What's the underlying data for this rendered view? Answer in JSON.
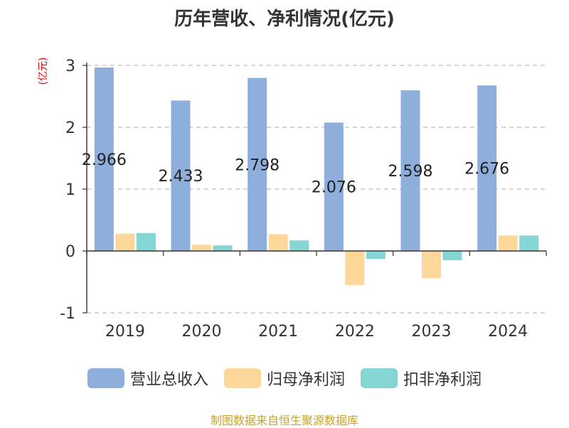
{
  "title": "历年营收、净利情况(亿元)",
  "unit_label": "(亿元)",
  "source": "制图数据来自恒生聚源数据库",
  "chart_data": {
    "type": "bar",
    "categories": [
      "2019",
      "2020",
      "2021",
      "2022",
      "2023",
      "2024"
    ],
    "ylim": [
      -1,
      3
    ],
    "yticks": [
      -1,
      0,
      1,
      2,
      3
    ],
    "ytick_labels": [
      "-1",
      "0",
      "1",
      "2",
      "3"
    ],
    "grid": true,
    "legend_position": "bottom",
    "series": [
      {
        "name": "营业总收入",
        "color": "#8eaedc",
        "values": [
          2.966,
          2.433,
          2.798,
          2.076,
          2.598,
          2.676
        ],
        "data_labels": [
          "2.966",
          "2.433",
          "2.798",
          "2.076",
          "2.598",
          "2.676"
        ]
      },
      {
        "name": "归母净利润",
        "color": "#fdd699",
        "values": [
          0.28,
          0.1,
          0.27,
          -0.55,
          -0.44,
          0.25
        ]
      },
      {
        "name": "扣非净利润",
        "color": "#86d5d5",
        "values": [
          0.29,
          0.09,
          0.17,
          -0.13,
          -0.15,
          0.25
        ]
      }
    ]
  }
}
